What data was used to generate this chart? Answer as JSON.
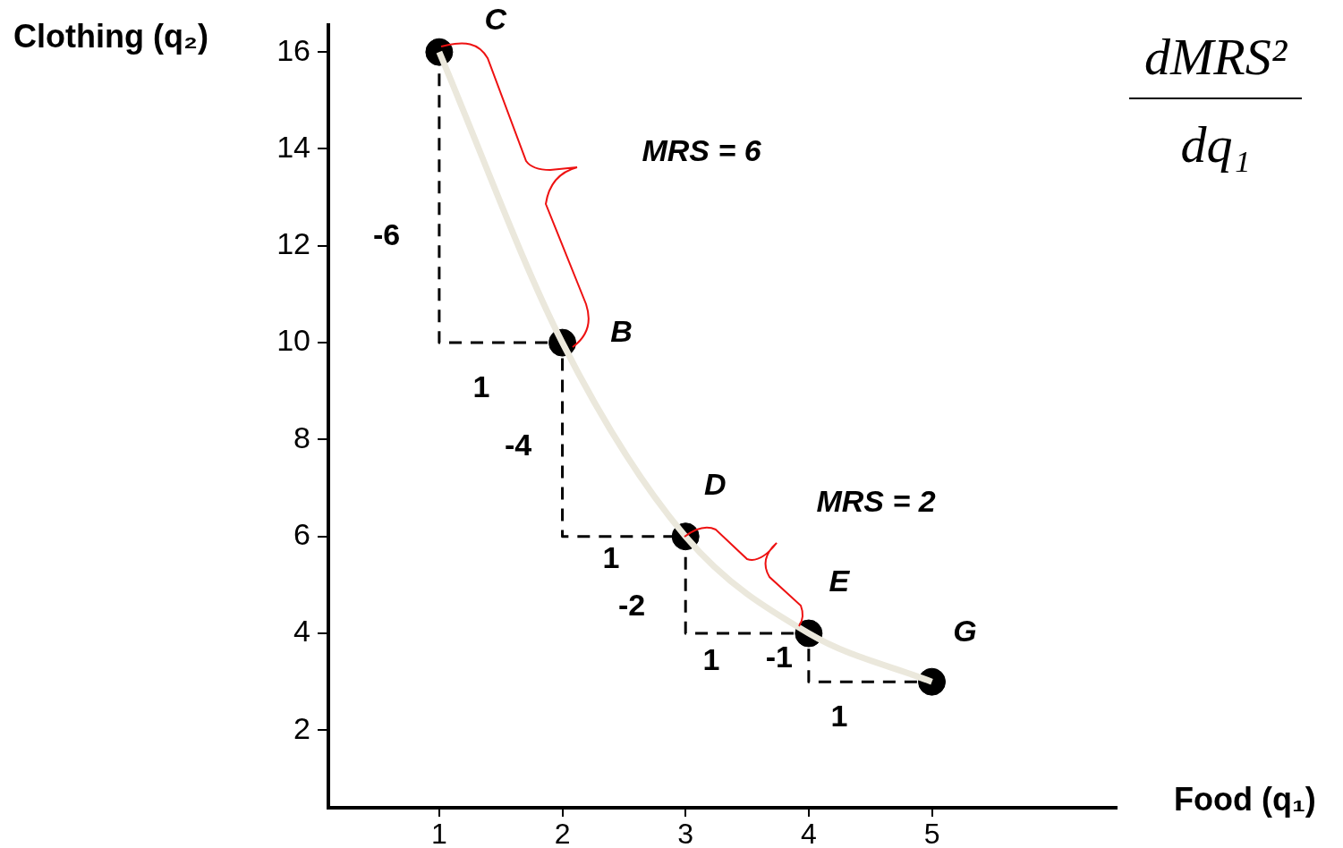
{
  "chart_data": {
    "type": "line",
    "xlabel": "Food (q₁)",
    "ylabel": "Clothing (q₂)",
    "xlim": [
      0.1,
      6.5
    ],
    "ylim": [
      0.4,
      16.55
    ],
    "xticks": [
      1,
      2,
      3,
      4,
      5
    ],
    "yticks": [
      2,
      4,
      6,
      8,
      10,
      12,
      14,
      16
    ],
    "grid": false,
    "legend": false,
    "series": [
      {
        "color": "#ebe8dc",
        "x": [
          1,
          2,
          3,
          4,
          5
        ],
        "values": [
          16,
          10,
          6,
          4,
          3
        ]
      },
      {
        "color": "#000000",
        "line_style": "dashed",
        "x": [
          1,
          1,
          2,
          2,
          3,
          3,
          4,
          4,
          5
        ],
        "values": [
          16,
          10,
          10,
          6,
          6,
          4,
          4,
          3,
          3
        ]
      },
      {
        "type": "scatter",
        "color": "#000000",
        "marker": "circle",
        "x": [
          1,
          2,
          3,
          4,
          5
        ],
        "values": [
          16,
          10,
          6,
          4,
          3
        ]
      }
    ],
    "annotations": [
      {
        "text": "C",
        "x": 1,
        "y": 16
      },
      {
        "text": "B",
        "x": 2,
        "y": 10
      },
      {
        "text": "D",
        "x": 3,
        "y": 6
      },
      {
        "text": "E",
        "x": 4,
        "y": 4
      },
      {
        "text": "G",
        "x": 5,
        "y": 3
      },
      "MRS = 6",
      "MRS = 2",
      "-6",
      "1",
      "-4",
      "1",
      "-2",
      "1",
      {
        "text": "-1",
        "x": 4,
        "y": 3.5
      },
      "1",
      "dMRS²",
      "dq₁"
    ]
  }
}
